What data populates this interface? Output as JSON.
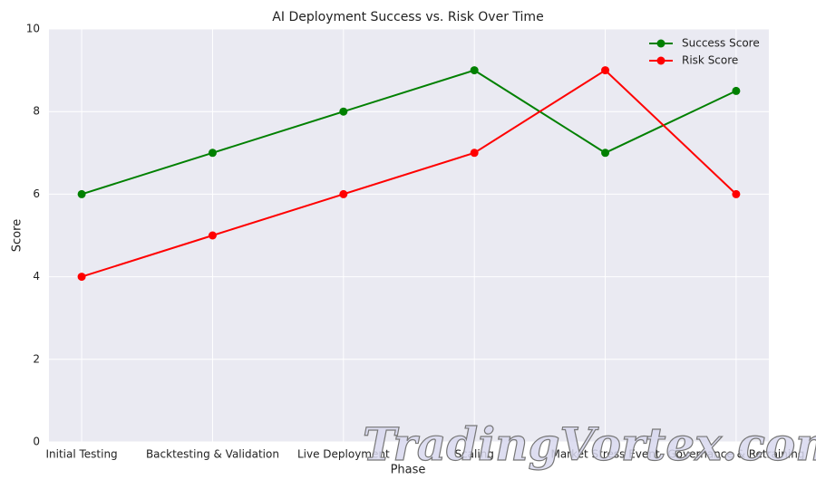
{
  "chart_data": {
    "type": "line",
    "title": "AI Deployment Success vs. Risk Over Time",
    "xlabel": "Phase",
    "ylabel": "Score",
    "categories": [
      "Initial Testing",
      "Backtesting & Validation",
      "Live Deployment",
      "Scaling",
      "Market Stress Event",
      "Governance & Retraining"
    ],
    "series": [
      {
        "name": "Success Score",
        "color": "#008000",
        "values": [
          6,
          7,
          8,
          9,
          7,
          8.5
        ]
      },
      {
        "name": "Risk Score",
        "color": "#ff0000",
        "values": [
          4,
          5,
          6,
          7,
          9,
          6
        ]
      }
    ],
    "ylim": [
      0,
      10
    ],
    "yticks": [
      0,
      2,
      4,
      6,
      8,
      10
    ],
    "grid": true,
    "legend": "upper right",
    "watermark": "TradingVortex.com"
  }
}
